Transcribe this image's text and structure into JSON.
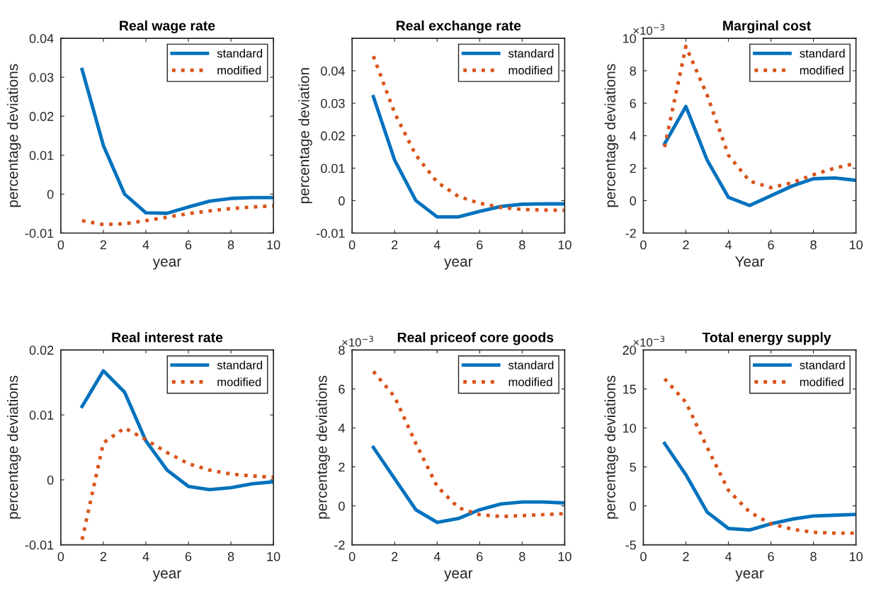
{
  "chart_data": [
    {
      "type": "line",
      "title": "Real wage rate",
      "xlabel": "year",
      "ylabel": "percentage deviations",
      "x": [
        1,
        2,
        3,
        4,
        5,
        6,
        7,
        8,
        9,
        10
      ],
      "xlim": [
        0,
        10
      ],
      "xticks": [
        0,
        2,
        4,
        6,
        8,
        10
      ],
      "ylim": [
        -0.01,
        0.04
      ],
      "yticks": [
        -0.01,
        0,
        0.01,
        0.02,
        0.03,
        0.04
      ],
      "legend": "top right",
      "series": [
        {
          "name": "standard",
          "color": "#0072bd",
          "line_style": "solid",
          "values": [
            0.032,
            0.0125,
            0.0,
            -0.0048,
            -0.0049,
            -0.0033,
            -0.0018,
            -0.0011,
            -0.0009,
            -0.0009
          ]
        },
        {
          "name": "modified",
          "color": "#d95319",
          "line_style": "dotted",
          "values": [
            -0.0068,
            -0.0078,
            -0.0076,
            -0.0068,
            -0.0059,
            -0.005,
            -0.0043,
            -0.0037,
            -0.0033,
            -0.003
          ]
        }
      ]
    },
    {
      "type": "line",
      "title": "Real exchange rate",
      "xlabel": "year",
      "ylabel": "percentage deviation",
      "x": [
        1,
        2,
        3,
        4,
        5,
        6,
        7,
        8,
        9,
        10
      ],
      "xlim": [
        0,
        10
      ],
      "xticks": [
        0,
        2,
        4,
        6,
        8,
        10
      ],
      "ylim": [
        -0.01,
        0.05
      ],
      "yticks": [
        -0.01,
        0,
        0.01,
        0.02,
        0.03,
        0.04
      ],
      "legend": "top right",
      "series": [
        {
          "name": "standard",
          "color": "#0072bd",
          "line_style": "solid",
          "values": [
            0.032,
            0.0125,
            0.0,
            -0.005,
            -0.005,
            -0.0033,
            -0.0018,
            -0.0011,
            -0.001,
            -0.001
          ]
        },
        {
          "name": "modified",
          "color": "#d95319",
          "line_style": "dotted",
          "values": [
            0.0445,
            0.027,
            0.014,
            0.0057,
            0.0013,
            -0.0008,
            -0.0021,
            -0.0027,
            -0.0029,
            -0.003
          ]
        }
      ]
    },
    {
      "type": "line",
      "title": "Marginal cost",
      "xlabel": "Year",
      "ylabel": "percentage deviations",
      "annotations": [
        "×10$^{−3}$"
      ],
      "x": [
        1,
        2,
        3,
        4,
        5,
        6,
        7,
        8,
        9,
        10
      ],
      "xlim": [
        0,
        10
      ],
      "xticks": [
        0,
        2,
        4,
        6,
        8,
        10
      ],
      "ylim": [
        -2,
        10
      ],
      "yticks": [
        -2,
        0,
        2,
        4,
        6,
        8,
        10
      ],
      "legend": "top right",
      "series": [
        {
          "name": "standard",
          "color": "#0072bd",
          "line_style": "solid",
          "values": [
            3.5,
            5.8,
            2.5,
            0.2,
            -0.3,
            0.3,
            0.9,
            1.35,
            1.4,
            1.25
          ]
        },
        {
          "name": "modified",
          "color": "#d95319",
          "line_style": "dotted",
          "values": [
            3.3,
            9.5,
            6.5,
            2.8,
            1.2,
            0.8,
            1.1,
            1.6,
            2.0,
            2.3
          ]
        }
      ]
    },
    {
      "type": "line",
      "title": "Real interest rate",
      "xlabel": "year",
      "ylabel": "percentage deviations",
      "x": [
        1,
        2,
        3,
        4,
        5,
        6,
        7,
        8,
        9,
        10
      ],
      "xlim": [
        0,
        10
      ],
      "xticks": [
        0,
        2,
        4,
        6,
        8,
        10
      ],
      "ylim": [
        -0.01,
        0.02
      ],
      "yticks": [
        -0.01,
        0,
        0.01,
        0.02
      ],
      "legend": "top right",
      "series": [
        {
          "name": "standard",
          "color": "#0072bd",
          "line_style": "solid",
          "values": [
            0.0113,
            0.0168,
            0.0135,
            0.006,
            0.0015,
            -0.001,
            -0.0015,
            -0.0012,
            -0.0006,
            -0.0003
          ]
        },
        {
          "name": "modified",
          "color": "#d95319",
          "line_style": "dotted",
          "values": [
            -0.0092,
            0.0057,
            0.008,
            0.0062,
            0.0042,
            0.0025,
            0.0015,
            0.0009,
            0.0006,
            0.0004
          ]
        }
      ]
    },
    {
      "type": "line",
      "title": "Real priceof core goods",
      "xlabel": "year",
      "ylabel": "percentage deviations",
      "annotations": [
        "×10$^{−3}$"
      ],
      "x": [
        1,
        2,
        3,
        4,
        5,
        6,
        7,
        8,
        9,
        10
      ],
      "xlim": [
        0,
        10
      ],
      "xticks": [
        0,
        2,
        4,
        6,
        8,
        10
      ],
      "ylim": [
        -2,
        8
      ],
      "yticks": [
        -2,
        0,
        2,
        4,
        6,
        8
      ],
      "legend": "top right",
      "series": [
        {
          "name": "standard",
          "color": "#0072bd",
          "line_style": "solid",
          "values": [
            3.0,
            1.4,
            -0.2,
            -0.85,
            -0.65,
            -0.2,
            0.1,
            0.2,
            0.2,
            0.15
          ]
        },
        {
          "name": "modified",
          "color": "#d95319",
          "line_style": "dotted",
          "values": [
            6.9,
            5.6,
            3.2,
            1.0,
            -0.1,
            -0.45,
            -0.55,
            -0.5,
            -0.45,
            -0.4
          ]
        }
      ]
    },
    {
      "type": "line",
      "title": "Total energy supply",
      "xlabel": "year",
      "ylabel": "percentage deviations",
      "annotations": [
        "×10$^{−3}$"
      ],
      "x": [
        1,
        2,
        3,
        4,
        5,
        6,
        7,
        8,
        9,
        10
      ],
      "xlim": [
        0,
        10
      ],
      "xticks": [
        0,
        2,
        4,
        6,
        8,
        10
      ],
      "ylim": [
        -5,
        20
      ],
      "yticks": [
        -5,
        0,
        5,
        10,
        15,
        20
      ],
      "legend": "top right",
      "series": [
        {
          "name": "standard",
          "color": "#0072bd",
          "line_style": "solid",
          "values": [
            8,
            4,
            -0.8,
            -2.9,
            -3.1,
            -2.3,
            -1.7,
            -1.3,
            -1.2,
            -1.1
          ]
        },
        {
          "name": "modified",
          "color": "#d95319",
          "line_style": "dotted",
          "values": [
            16.3,
            13.3,
            7.5,
            2.0,
            -0.8,
            -2.3,
            -3.0,
            -3.4,
            -3.5,
            -3.5
          ]
        }
      ]
    }
  ]
}
